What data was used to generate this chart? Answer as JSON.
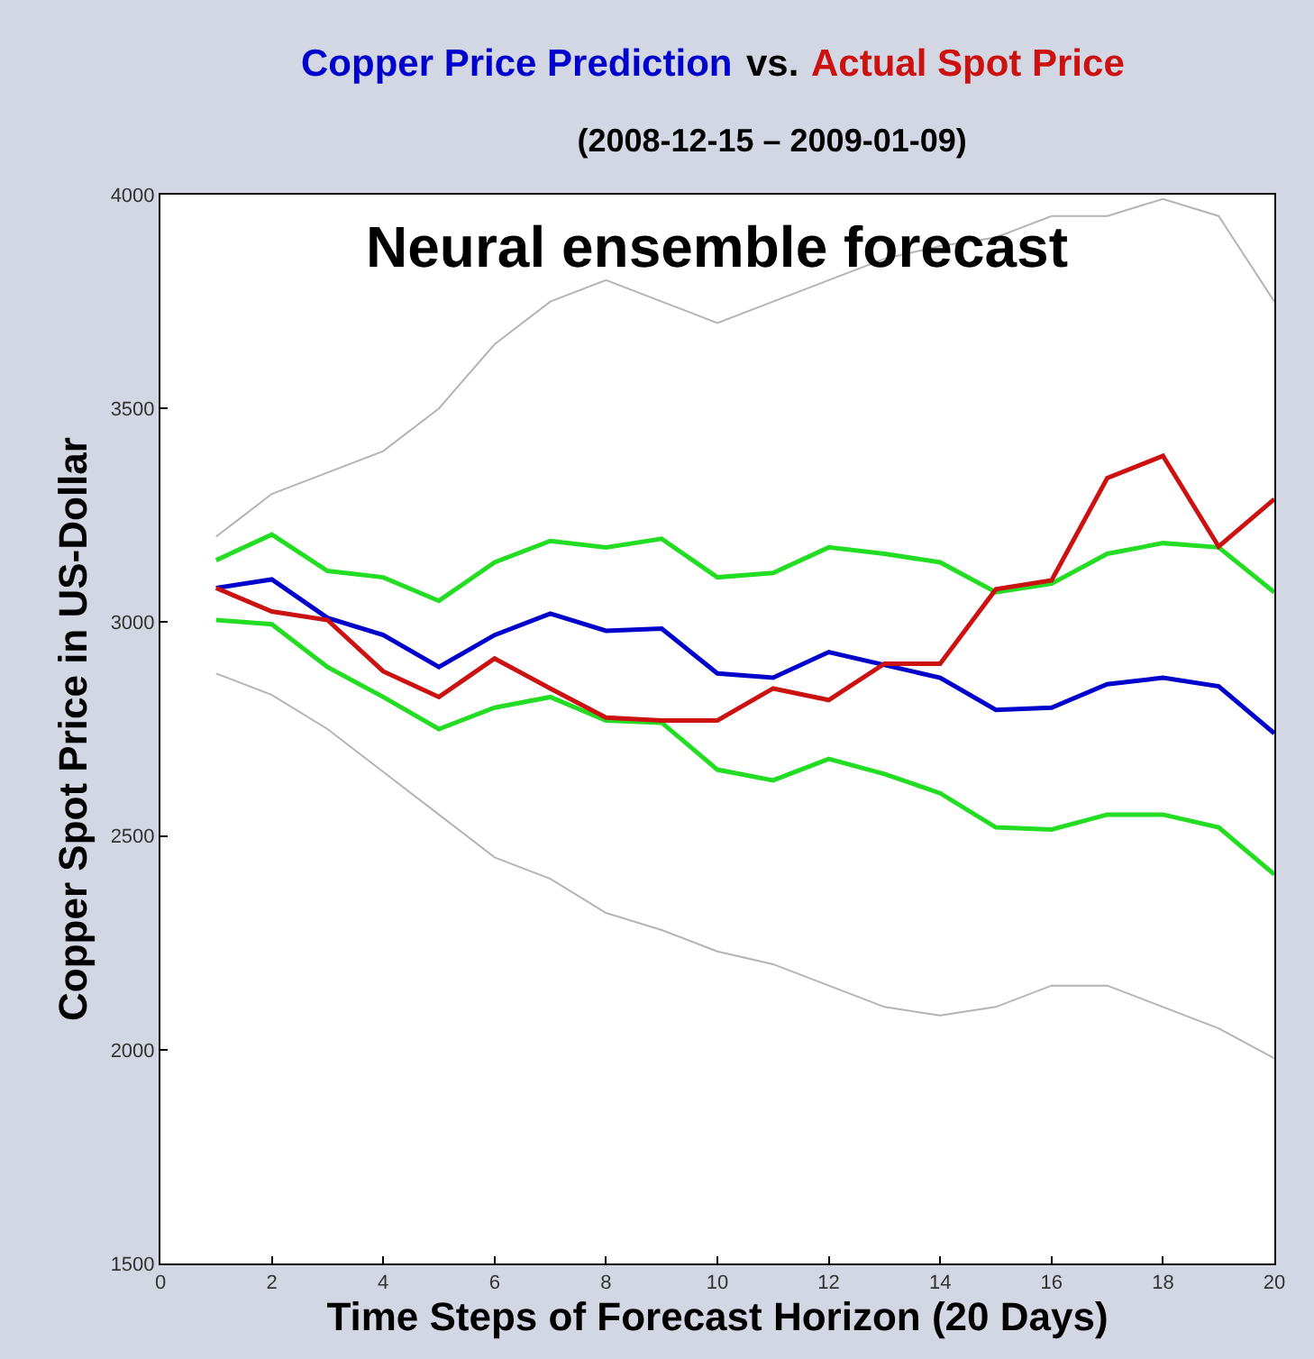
{
  "chart_data": {
    "type": "line",
    "subtitle": "(2008-12-15 – 2009-01-09)",
    "xlabel": "Time Steps of Forecast Horizon (20 Days)",
    "ylabel": "Copper Spot Price in US-Dollar",
    "annotations": [
      "Neural ensemble forecast",
      "vs."
    ],
    "x": [
      1,
      2,
      3,
      4,
      5,
      6,
      7,
      8,
      9,
      10,
      11,
      12,
      13,
      14,
      15,
      16,
      17,
      18,
      19,
      20
    ],
    "series": [
      {
        "color": "#b4b4b4",
        "values": [
          3200,
          3300,
          3350,
          3400,
          3500,
          3650,
          3750,
          3800,
          3750,
          3700,
          3750,
          3800,
          3850,
          3880,
          3900,
          3950,
          3950,
          3990,
          3950,
          3750
        ]
      },
      {
        "color": "#b4b4b4",
        "values": [
          2880,
          2830,
          2750,
          2650,
          2550,
          2450,
          2400,
          2320,
          2280,
          2230,
          2200,
          2150,
          2100,
          2080,
          2100,
          2150,
          2150,
          2100,
          2050,
          1980
        ]
      },
      {
        "color": "#22dd22",
        "values": [
          3145,
          3205,
          3120,
          3105,
          3050,
          3140,
          3190,
          3175,
          3195,
          3105,
          3115,
          3175,
          3160,
          3140,
          3070,
          3090,
          3160,
          3185,
          3175,
          3070
        ]
      },
      {
        "color": "#22dd22",
        "values": [
          3005,
          2995,
          2895,
          2825,
          2750,
          2800,
          2825,
          2770,
          2765,
          2655,
          2630,
          2680,
          2645,
          2600,
          2520,
          2515,
          2550,
          2550,
          2520,
          2410
        ]
      },
      {
        "name": "Copper Price Prediction",
        "color": "#0000cc",
        "values": [
          3080,
          3100,
          3010,
          2970,
          2895,
          2970,
          3020,
          2980,
          2985,
          2880,
          2870,
          2930,
          2900,
          2870,
          2795,
          2800,
          2855,
          2870,
          2850,
          2740
        ]
      },
      {
        "name": "Actual Spot Price",
        "color": "#cc1111",
        "values": [
          3080,
          3025,
          3005,
          2885,
          2825,
          2915,
          2845,
          2777,
          2770,
          2770,
          2845,
          2818,
          2903,
          2903,
          3077,
          3098,
          3337,
          3389,
          3177,
          3288
        ]
      }
    ],
    "xlim": [
      0,
      20
    ],
    "xticks": [
      0,
      2,
      4,
      6,
      8,
      10,
      12,
      14,
      16,
      18,
      20
    ],
    "ylim": [
      1500,
      4000
    ],
    "yticks": [
      1500,
      2000,
      2500,
      3000,
      3500,
      4000
    ],
    "grid": false,
    "legend": false,
    "marker": "none",
    "line_style": "solid"
  }
}
